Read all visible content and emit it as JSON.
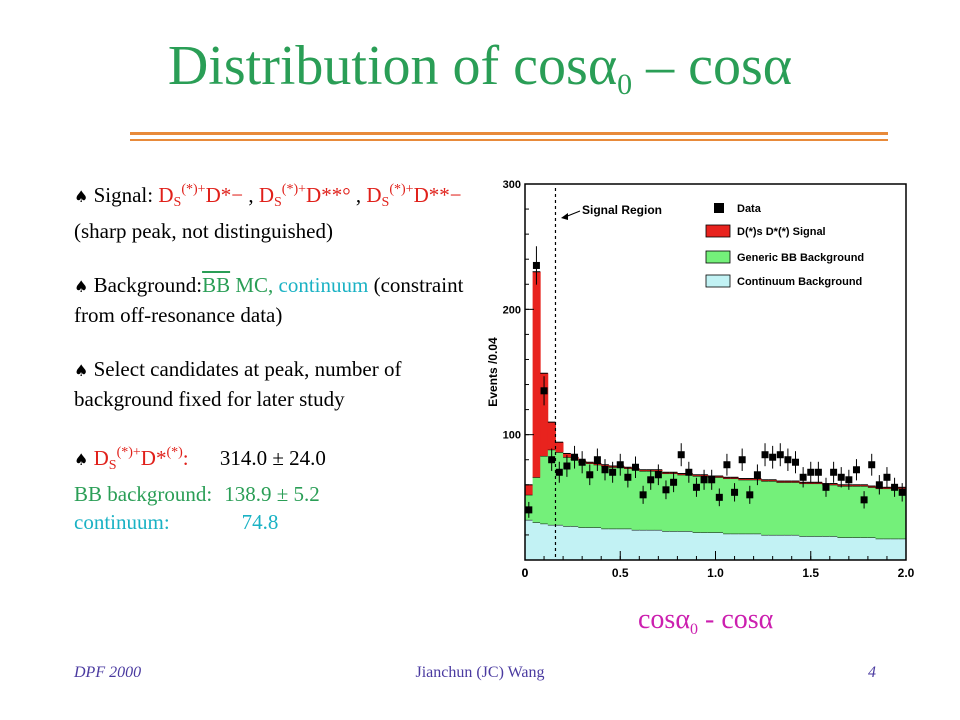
{
  "slide": {
    "title_main": "Distribution of cosα",
    "title_sub": "0",
    "title_end": " – cosα",
    "bullet_symbol": "♠",
    "b1": {
      "lead": " Signal:  ",
      "d1": "D",
      "d1_sub": "S",
      "d1_sup": "(*)+",
      "d1_tail": "D*−",
      "sep1": " ,  ",
      "d2": "D",
      "d2_sub": "S",
      "d2_sup": "(*)+",
      "d2_tail": "D**°",
      "sep2": " ,",
      "d3": "D",
      "d3_sub": "S",
      "d3_sup": "(*)+",
      "d3_tail": "D**−",
      "note": "   (sharp peak, not distinguished)"
    },
    "b2": {
      "lead": " Background:",
      "bb": "BB",
      "mc": " MC, ",
      "cont": "continuum",
      "rest": " (constraint from off-resonance data)"
    },
    "b3": {
      "text": " Select candidates at peak, number of background fixed for later study"
    },
    "b4": {
      "d": "D",
      "d_sub": "S",
      "d_sup": "(*)+",
      "d_tail": "D*",
      "d_tail_sup": "(*)",
      "colon": ":",
      "signal_value": "314.0  ± 24.0",
      "bb_label": "BB background:",
      "bb_value": "138.9 ± 5.2",
      "cont_label": "continuum:",
      "cont_value": "74.8"
    },
    "xlabel_main": "cosα",
    "xlabel_sub": "0",
    "xlabel_end": " - cosα",
    "footer_left": "DPF 2000",
    "footer_center": "Jianchun (JC) Wang",
    "footer_right": "4"
  },
  "colors": {
    "signal": "#e8231e",
    "generic_bb": "#74f07a",
    "continuum": "#c2f2f4",
    "data": "#000000"
  },
  "chart_data": {
    "type": "bar",
    "ylabel": "Events /0.04",
    "xlim": [
      0,
      2.0
    ],
    "ylim": [
      0,
      300
    ],
    "xticks": [
      "0",
      "0.5",
      "1.0",
      "1.5",
      "2.0"
    ],
    "yticks": [
      "100",
      "200",
      "300"
    ],
    "annotation": "Signal Region",
    "signal_region_cut": 0.16,
    "bin_width": 0.04,
    "legend_position": "top-right",
    "legend": [
      "Data",
      "D(*)s D*(*) Signal",
      "Generic BB Background",
      "Continuum Background"
    ],
    "series": [
      {
        "name": "Continuum Background",
        "values": [
          32,
          30,
          29,
          28,
          28,
          27,
          27,
          26,
          26,
          26,
          25,
          25,
          25,
          25,
          24,
          24,
          24,
          24,
          23,
          23,
          23,
          23,
          22,
          22,
          22,
          22,
          21,
          21,
          21,
          21,
          21,
          20,
          20,
          20,
          20,
          20,
          19,
          19,
          19,
          19,
          19,
          18,
          18,
          18,
          18,
          18,
          17,
          17,
          17,
          17
        ]
      },
      {
        "name": "Generic BB Background",
        "values": [
          20,
          36,
          54,
          60,
          58,
          55,
          53,
          52,
          51,
          50,
          50,
          49,
          49,
          48,
          48,
          47,
          47,
          47,
          46,
          46,
          45,
          45,
          45,
          45,
          44,
          44,
          44,
          44,
          43,
          43,
          43,
          43,
          43,
          42,
          42,
          42,
          42,
          42,
          42,
          41,
          41,
          41,
          41,
          41,
          41,
          40,
          40,
          40,
          40,
          40
        ]
      },
      {
        "name": "D(*)s D*(*) Signal",
        "values": [
          8,
          164,
          66,
          22,
          8,
          3,
          2,
          1,
          1,
          1,
          1,
          1,
          1,
          1,
          1,
          1,
          1,
          1,
          1,
          1,
          1,
          1,
          1,
          1,
          1,
          1,
          1,
          1,
          1,
          1,
          1,
          1,
          1,
          1,
          1,
          1,
          1,
          1,
          1,
          1,
          1,
          1,
          1,
          1,
          1,
          1,
          1,
          1,
          1,
          1
        ]
      },
      {
        "name": "Data",
        "values": [
          40,
          235,
          135,
          80,
          70,
          75,
          82,
          78,
          68,
          80,
          72,
          70,
          76,
          66,
          74,
          52,
          64,
          68,
          56,
          62,
          84,
          70,
          58,
          64,
          64,
          50,
          76,
          54,
          80,
          52,
          68,
          84,
          82,
          84,
          80,
          78,
          66,
          70,
          70,
          58,
          70,
          66,
          64,
          72,
          48,
          76,
          60,
          66,
          58,
          54
        ]
      }
    ]
  }
}
